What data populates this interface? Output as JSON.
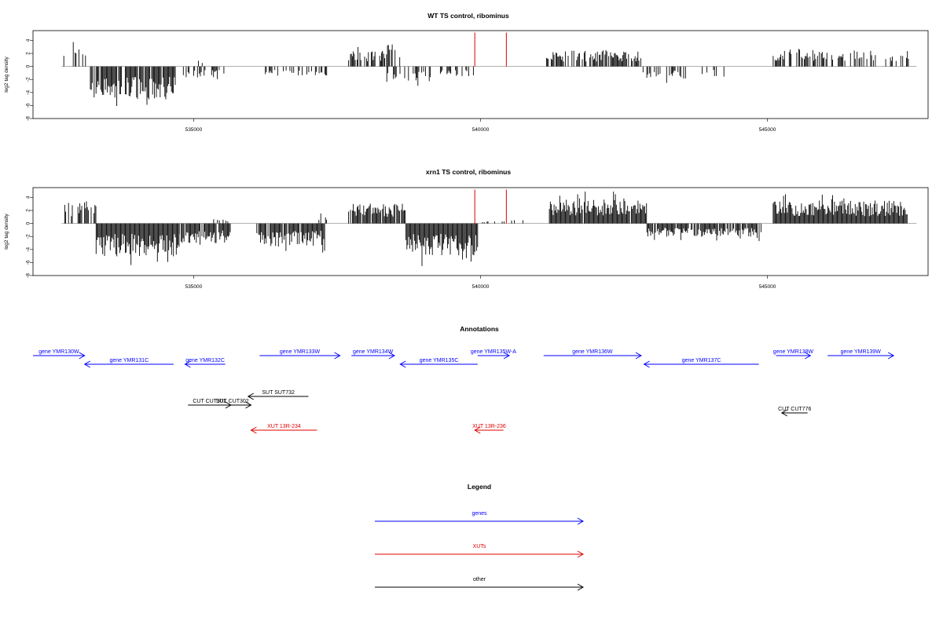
{
  "chart_data": [
    {
      "type": "bar",
      "title": "WT TS control, ribominus",
      "ylabel": "log2 tag density",
      "xlabel": "",
      "xlim": [
        532200,
        547800
      ],
      "ylim": [
        -8,
        5.5
      ],
      "x_ticks": [
        535000,
        540000,
        545000
      ],
      "y_ticks": [
        4,
        2,
        0,
        -2,
        -4,
        -6,
        -8
      ],
      "baseline_x": [
        532700,
        547600
      ],
      "markers": [
        {
          "x": 539900,
          "color": "#e00000"
        },
        {
          "x": 540450,
          "color": "#e00000"
        }
      ],
      "segments": [
        {
          "x0": 532720,
          "x1": 533000,
          "amp": 3.6,
          "density": 0.25
        },
        {
          "x0": 533000,
          "x1": 533350,
          "amp": 2.2,
          "density": 0.15
        },
        {
          "x0": 533200,
          "x1": 534680,
          "amp": -4.6,
          "density": 0.9
        },
        {
          "x0": 534820,
          "x1": 535550,
          "amp": -1.6,
          "density": 0.35
        },
        {
          "x0": 534820,
          "x1": 535500,
          "amp": 1.1,
          "density": 0.15
        },
        {
          "x0": 536200,
          "x1": 537350,
          "amp": -1.3,
          "density": 0.25
        },
        {
          "x0": 537700,
          "x1": 538300,
          "amp": 2.2,
          "density": 0.55
        },
        {
          "x0": 538280,
          "x1": 538600,
          "amp": 3.2,
          "density": 0.5
        },
        {
          "x0": 538350,
          "x1": 539150,
          "amp": -2.2,
          "density": 0.5
        },
        {
          "x0": 539300,
          "x1": 539900,
          "amp": -1.5,
          "density": 0.4
        },
        {
          "x0": 541100,
          "x1": 542800,
          "amp": 2.2,
          "density": 0.7
        },
        {
          "x0": 542800,
          "x1": 543600,
          "amp": -1.7,
          "density": 0.35
        },
        {
          "x0": 543700,
          "x1": 544400,
          "amp": -1.5,
          "density": 0.2
        },
        {
          "x0": 545100,
          "x1": 546700,
          "amp": 2.4,
          "density": 0.55
        },
        {
          "x0": 546700,
          "x1": 547500,
          "amp": 2.2,
          "density": 0.35
        }
      ]
    },
    {
      "type": "bar",
      "title": "xrn1 TS control, ribominus",
      "ylabel": "log2 tag density",
      "xlabel": "",
      "xlim": [
        532200,
        547800
      ],
      "ylim": [
        -8,
        5.5
      ],
      "x_ticks": [
        535000,
        540000,
        545000
      ],
      "y_ticks": [
        4,
        2,
        0,
        -2,
        -4,
        -6,
        -8
      ],
      "baseline_x": [
        532700,
        547600
      ],
      "markers": [
        {
          "x": 539900,
          "color": "#e00000"
        },
        {
          "x": 540450,
          "color": "#e00000"
        }
      ],
      "segments": [
        {
          "x0": 532720,
          "x1": 533300,
          "amp": 3.2,
          "density": 0.6
        },
        {
          "x0": 533300,
          "x1": 534750,
          "amp": -4.6,
          "density": 1.0
        },
        {
          "x0": 534750,
          "x1": 535650,
          "amp": -2.8,
          "density": 0.9
        },
        {
          "x0": 535300,
          "x1": 535600,
          "amp": 0.6,
          "density": 0.2
        },
        {
          "x0": 536100,
          "x1": 537300,
          "amp": -3.2,
          "density": 0.9
        },
        {
          "x0": 537150,
          "x1": 537400,
          "amp": 1.4,
          "density": 0.2
        },
        {
          "x0": 537700,
          "x1": 538700,
          "amp": 2.8,
          "density": 0.95
        },
        {
          "x0": 538700,
          "x1": 539950,
          "amp": -4.5,
          "density": 1.0
        },
        {
          "x0": 539950,
          "x1": 540800,
          "amp": 0.5,
          "density": 0.25
        },
        {
          "x0": 541200,
          "x1": 542900,
          "amp": 3.5,
          "density": 0.95
        },
        {
          "x0": 542900,
          "x1": 544900,
          "amp": -1.9,
          "density": 0.85
        },
        {
          "x0": 545100,
          "x1": 547450,
          "amp": 3.2,
          "density": 1.0
        }
      ]
    }
  ],
  "annotations": {
    "title": "Annotations",
    "xlim": [
      532200,
      547800
    ],
    "items": [
      {
        "label": "gene YMR130W",
        "x0": 532200,
        "x1": 533100,
        "dir": "right",
        "row": 0,
        "color": "#0000ff"
      },
      {
        "label": "gene YMR131C",
        "x0": 533100,
        "x1": 534650,
        "dir": "left",
        "row": 1,
        "color": "#0000ff"
      },
      {
        "label": "gene YMR132C",
        "x0": 534850,
        "x1": 535550,
        "dir": "left",
        "row": 1,
        "color": "#0000ff"
      },
      {
        "label": "gene YMR133W",
        "x0": 536150,
        "x1": 537550,
        "dir": "right",
        "row": 0,
        "color": "#0000ff"
      },
      {
        "label": "gene YMR134W",
        "x0": 537750,
        "x1": 538500,
        "dir": "right",
        "row": 0,
        "color": "#0000ff"
      },
      {
        "label": "gene YMR135C",
        "x0": 538600,
        "x1": 539950,
        "dir": "left",
        "row": 1,
        "color": "#0000ff"
      },
      {
        "label": "gene YMR135W-A",
        "x0": 539950,
        "x1": 540500,
        "dir": "right",
        "row": 0,
        "color": "#0000ff"
      },
      {
        "label": "gene YMR136W",
        "x0": 541100,
        "x1": 542800,
        "dir": "right",
        "row": 0,
        "color": "#0000ff"
      },
      {
        "label": "gene YMR137C",
        "x0": 542850,
        "x1": 544850,
        "dir": "left",
        "row": 1,
        "color": "#0000ff"
      },
      {
        "label": "gene YMR138W",
        "x0": 545150,
        "x1": 545750,
        "dir": "right",
        "row": 0,
        "color": "#0000ff"
      },
      {
        "label": "gene YMR139W",
        "x0": 546050,
        "x1": 547200,
        "dir": "right",
        "row": 0,
        "color": "#0000ff"
      },
      {
        "label": "SUT SUT732",
        "x0": 535950,
        "x1": 537000,
        "dir": "left",
        "row": 2,
        "color": "#000000"
      },
      {
        "label": "CUT CUT301",
        "x0": 534900,
        "x1": 535650,
        "dir": "right",
        "row": 3,
        "color": "#000000"
      },
      {
        "label": "SUT CUT302",
        "x0": 535350,
        "x1": 536000,
        "dir": "right",
        "row": 3,
        "color": "#000000"
      },
      {
        "label": "CUT CUT776",
        "x0": 545250,
        "x1": 545700,
        "dir": "left",
        "row": 4,
        "color": "#000000"
      },
      {
        "label": "XUT 13R-234",
        "x0": 536000,
        "x1": 537150,
        "dir": "left",
        "row": 5,
        "color": "#e00000"
      },
      {
        "label": "XUT 13R-236",
        "x0": 539900,
        "x1": 540400,
        "dir": "left",
        "row": 5,
        "color": "#e00000"
      }
    ]
  },
  "legend": {
    "title": "Legend",
    "items": [
      {
        "label": "genes",
        "color": "#0000ff"
      },
      {
        "label": "XUTs",
        "color": "#e00000"
      },
      {
        "label": "other",
        "color": "#000000"
      }
    ]
  }
}
